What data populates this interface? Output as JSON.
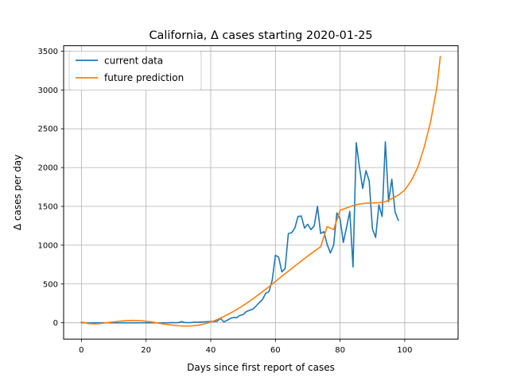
{
  "chart_data": {
    "type": "line",
    "title": "California, Δ cases starting 2020-01-25",
    "xlabel": "Days since first report of cases",
    "ylabel": "Δ cases per day",
    "xlim": [
      -5.5,
      116.5
    ],
    "ylim": [
      -210,
      3570
    ],
    "xticks": [
      0,
      20,
      40,
      60,
      80,
      100
    ],
    "yticks": [
      0,
      500,
      1000,
      1500,
      2000,
      2500,
      3000,
      3500
    ],
    "grid": true,
    "legend_position": "top-left",
    "series": [
      {
        "name": "current data",
        "color": "#1f77b4",
        "x": [
          0,
          1,
          2,
          3,
          4,
          5,
          6,
          7,
          8,
          9,
          10,
          11,
          12,
          13,
          14,
          15,
          16,
          17,
          18,
          19,
          20,
          21,
          22,
          23,
          24,
          25,
          26,
          27,
          28,
          29,
          30,
          31,
          32,
          33,
          34,
          35,
          36,
          37,
          38,
          39,
          40,
          41,
          42,
          43,
          44,
          45,
          46,
          47,
          48,
          49,
          50,
          51,
          52,
          53,
          54,
          55,
          56,
          57,
          58,
          59,
          60,
          61,
          62,
          63,
          64,
          65,
          66,
          67,
          68,
          69,
          70,
          71,
          72,
          73,
          74,
          75,
          76,
          77,
          78,
          79,
          80,
          81,
          82,
          83,
          84,
          85,
          86,
          87,
          88,
          89,
          90,
          91,
          92,
          93,
          94,
          95,
          96,
          97,
          98
        ],
        "y": [
          2,
          0,
          0,
          0,
          0,
          0,
          0,
          1,
          0,
          1,
          0,
          0,
          0,
          1,
          0,
          0,
          0,
          0,
          0,
          0,
          0,
          1,
          0,
          0,
          0,
          0,
          0,
          0,
          2,
          1,
          2,
          15,
          3,
          2,
          4,
          8,
          8,
          10,
          12,
          14,
          16,
          18,
          20,
          58,
          12,
          30,
          55,
          68,
          65,
          95,
          105,
          145,
          160,
          175,
          215,
          260,
          300,
          380,
          400,
          545,
          870,
          845,
          655,
          700,
          1150,
          1160,
          1220,
          1370,
          1375,
          1220,
          1270,
          1200,
          1250,
          1500,
          1150,
          1175,
          1010,
          900,
          1000,
          1415,
          1340,
          1035,
          1230,
          1435,
          720,
          2320,
          2000,
          1730,
          1960,
          1830,
          1210,
          1100,
          1520,
          1370,
          2330,
          1560,
          1850,
          1430,
          1320
        ]
      },
      {
        "name": "future prediction",
        "color": "#ff7f0e",
        "x": [
          0,
          2,
          4,
          6,
          8,
          10,
          12,
          14,
          16,
          18,
          20,
          22,
          24,
          26,
          28,
          30,
          32,
          34,
          36,
          38,
          40,
          42,
          44,
          46,
          48,
          50,
          52,
          54,
          56,
          58,
          60,
          62,
          64,
          66,
          68,
          70,
          72,
          74,
          76,
          78,
          80,
          82,
          84,
          86,
          88,
          90,
          92,
          94,
          96,
          98,
          100,
          102,
          104,
          106,
          108,
          110,
          111
        ],
        "y": [
          10,
          -8,
          -15,
          -10,
          2,
          12,
          22,
          28,
          30,
          28,
          20,
          10,
          -5,
          -20,
          -30,
          -38,
          -42,
          -40,
          -32,
          -15,
          10,
          42,
          80,
          122,
          170,
          222,
          278,
          338,
          400,
          465,
          532,
          600,
          665,
          730,
          795,
          860,
          920,
          980,
          1240,
          1200,
          1450,
          1480,
          1510,
          1530,
          1540,
          1545,
          1548,
          1560,
          1600,
          1645,
          1710,
          1830,
          2000,
          2260,
          2590,
          3050,
          3430
        ]
      }
    ]
  }
}
